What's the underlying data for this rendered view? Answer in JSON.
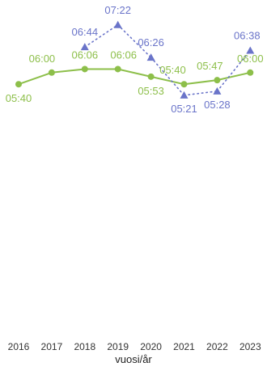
{
  "chart_data": {
    "type": "line",
    "title": "",
    "xlabel": "vuosi/år",
    "ylabel": "",
    "categories": [
      "2016",
      "2017",
      "2018",
      "2019",
      "2020",
      "2021",
      "2022",
      "2023"
    ],
    "series": [
      {
        "values": [
          "05:40",
          "06:00",
          "06:06",
          "06:06",
          "05:53",
          "05:40",
          "05:47",
          "06:00"
        ],
        "color": "#8dbf4a",
        "line_style": "solid",
        "marker": "circle"
      },
      {
        "values": [
          null,
          null,
          "06:44",
          "07:22",
          "06:26",
          "05:21",
          "05:28",
          "06:38"
        ],
        "color": "#6a74c9",
        "line_style": "dotted",
        "marker": "triangle"
      }
    ],
    "grid": false,
    "legend": "none"
  }
}
